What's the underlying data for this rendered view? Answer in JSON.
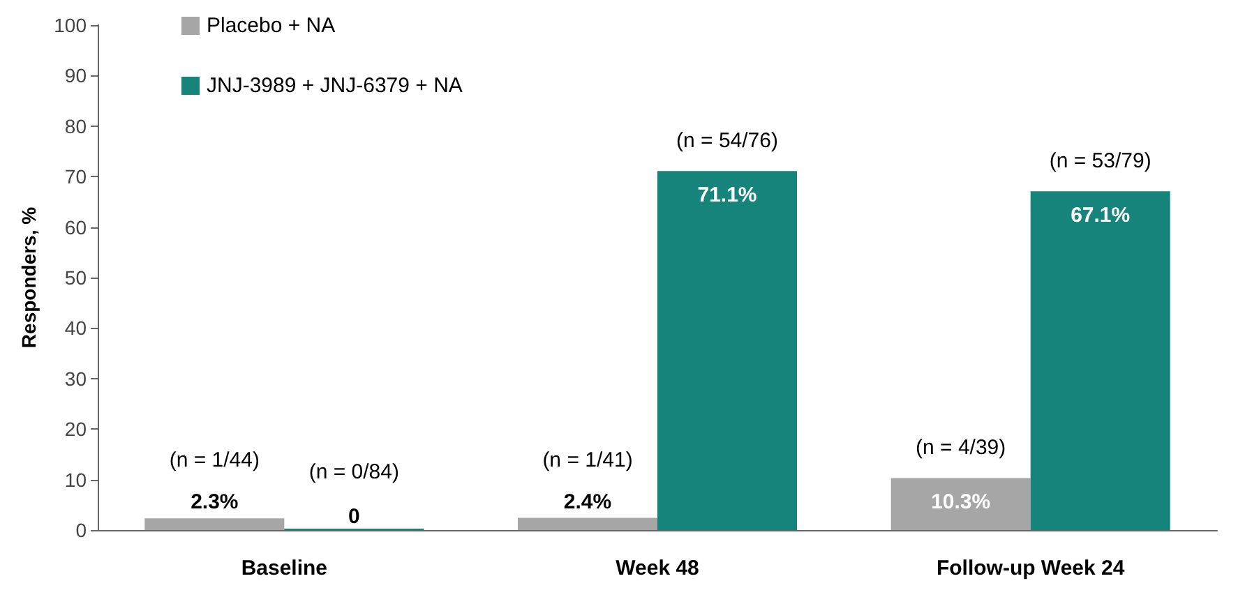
{
  "chart_data": {
    "type": "bar",
    "ylabel": "Responders, %",
    "categories": [
      "Baseline",
      "Week 48",
      "Follow-up Week 24"
    ],
    "series": [
      {
        "name": "Placebo + NA",
        "color": "#a6a6a6",
        "values": [
          2.3,
          2.4,
          10.3
        ],
        "value_labels": [
          "2.3%",
          "2.4%",
          "10.3%"
        ]
      },
      {
        "name": "JNJ-3989 + JNJ-6379 + NA",
        "color": "#16847b",
        "values": [
          0,
          71.1,
          67.1
        ],
        "value_labels": [
          "0",
          "71.1%",
          "67.1%"
        ]
      }
    ],
    "ylim": [
      0,
      100
    ],
    "yticks": [
      0,
      10,
      20,
      30,
      40,
      50,
      60,
      70,
      80,
      90,
      100
    ],
    "grid": false,
    "legend": "top left",
    "annotations": [
      {
        "text": "(n = 1/44)",
        "x": "Baseline",
        "y": 2.3
      },
      {
        "text": "(n = 0/84)",
        "x": "Baseline",
        "y": 0
      },
      {
        "text": "(n = 1/41)",
        "x": "Week 48",
        "y": 2.4
      },
      {
        "text": "(n = 54/76)",
        "x": "Week 48",
        "y": 71.1
      },
      {
        "text": "(n = 4/39)",
        "x": "Follow-up Week 24",
        "y": 10.3
      },
      {
        "text": "(n = 53/79)",
        "x": "Follow-up Week 24",
        "y": 67.1
      }
    ]
  }
}
